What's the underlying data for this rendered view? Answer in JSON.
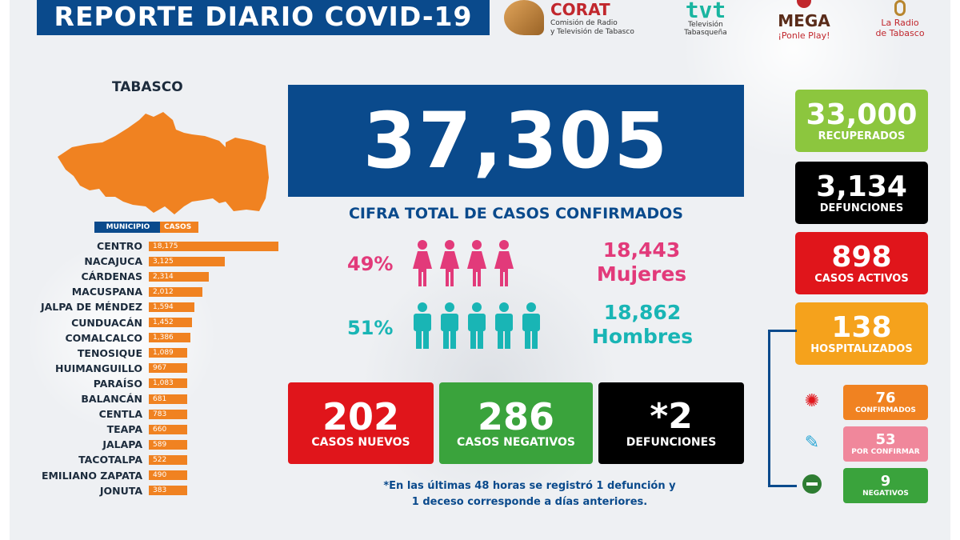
{
  "header": {
    "title": "REPORTE DIARIO COVID-19",
    "logos": {
      "corat": {
        "name": "CORAT",
        "subtitle_1": "Comisión de Radio",
        "subtitle_2": "y Televisión de Tabasco"
      },
      "tvt": {
        "name": "tvt",
        "subtitle_1": "Televisión",
        "subtitle_2": "Tabasqueña"
      },
      "mega": {
        "name": "MEGA",
        "subtitle": "¡Ponle Play!"
      },
      "radio": {
        "subtitle_1": "La Radio",
        "subtitle_2": "de Tabasco"
      }
    }
  },
  "map": {
    "title": "TABASCO",
    "color": "#f08221"
  },
  "total": {
    "value": "37,305",
    "label": "CIFRA TOTAL DE CASOS CONFIRMADOS"
  },
  "gender": {
    "women": {
      "percent": "49%",
      "count": "18,443",
      "label": "Mujeres",
      "color": "#e23a7a",
      "icons": 4
    },
    "men": {
      "percent": "51%",
      "count": "18,862",
      "label": "Hombres",
      "color": "#19b5b5",
      "icons": 5
    }
  },
  "daily": {
    "new": {
      "value": "202",
      "label": "CASOS NUEVOS"
    },
    "negative": {
      "value": "286",
      "label": "CASOS NEGATIVOS"
    },
    "deaths": {
      "value": "*2",
      "label": "DEFUNCIONES"
    }
  },
  "footnote": {
    "line1": "*En las últimas 48 horas se registró 1 defunción y",
    "line2": "1 deceso corresponde a días anteriores."
  },
  "sidebar": {
    "recovered": {
      "value": "33,000",
      "label": "RECUPERADOS"
    },
    "deaths": {
      "value": "3,134",
      "label": "DEFUNCIONES"
    },
    "active": {
      "value": "898",
      "label": "CASOS ACTIVOS"
    },
    "hospitalized": {
      "value": "138",
      "label": "HOSPITALIZADOS"
    },
    "hosp_breakdown": {
      "confirmed": {
        "value": "76",
        "label": "CONFIRMADOS",
        "icon": "virus-icon"
      },
      "pending": {
        "value": "53",
        "label": "POR CONFIRMAR",
        "icon": "syringe-icon"
      },
      "negative": {
        "value": "9",
        "label": "NEGATIVOS",
        "icon": "minus-circle-icon"
      }
    }
  },
  "chart_data": {
    "type": "bar",
    "orientation": "horizontal",
    "xlabel": "CASOS",
    "ylabel": "MUNICIPIO",
    "categories": [
      "CENTRO",
      "NACAJUCA",
      "CÁRDENAS",
      "MACUSPANA",
      "JALPA DE MÉNDEZ",
      "CUNDUACÁN",
      "COMALCALCO",
      "TENOSIQUE",
      "HUIMANGUILLO",
      "PARAÍSO",
      "BALANCÁN",
      "CENTLA",
      "TEAPA",
      "JALAPA",
      "TACOTALPA",
      "EMILIANO ZAPATA",
      "JONUTA"
    ],
    "values": [
      18175,
      3125,
      2314,
      2012,
      1594,
      1452,
      1386,
      1089,
      967,
      1083,
      681,
      783,
      660,
      589,
      522,
      490,
      383
    ],
    "labels": [
      "18,175",
      "3,125",
      "2,314",
      "2,012",
      "1,594",
      "1,452",
      "1,386",
      "1,089",
      "967",
      "1,083",
      "681",
      "783",
      "660",
      "589",
      "522",
      "490",
      "383"
    ],
    "color": "#f08221"
  }
}
